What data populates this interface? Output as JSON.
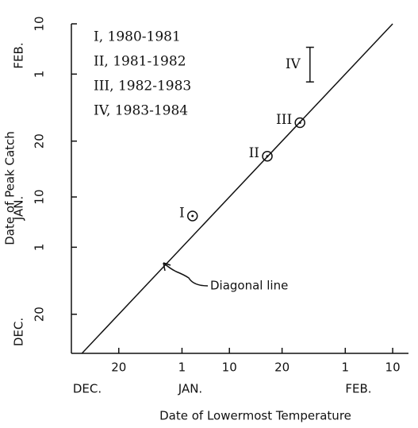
{
  "chart_data": {
    "type": "scatter",
    "x_label": "Date of Lowermost Temperature",
    "y_label": "Date of Peak Catch",
    "x_months": [
      "DEC.",
      "JAN.",
      "FEB."
    ],
    "y_months": [
      "DEC.",
      "JAN.",
      "FEB."
    ],
    "xlim": [
      11,
      75
    ],
    "ylim": [
      13,
      72
    ],
    "xticks": [
      20,
      {
        "value": 32,
        "label": "1"
      },
      {
        "value": 41,
        "label": "10"
      },
      {
        "value": 51,
        "label": "20"
      },
      {
        "value": 63,
        "label": "1"
      },
      {
        "value": 72,
        "label": "10"
      }
    ],
    "yticks": [
      20,
      {
        "value": 32,
        "label": "1"
      },
      {
        "value": 41,
        "label": "10"
      },
      {
        "value": 51,
        "label": "20"
      },
      {
        "value": 63,
        "label": "1"
      },
      {
        "value": 72,
        "label": "10"
      }
    ],
    "points": {
      "labels": [
        "I",
        "II",
        "III"
      ],
      "x": [
        34,
        48.2,
        54.4
      ],
      "values": [
        37.6,
        48.3,
        54.3
      ]
    },
    "range": {
      "label": "IV",
      "x": 56.3,
      "low": 61.6,
      "high": 67.8
    },
    "legend": [
      "I, 1980-1981",
      "II, 1981-1982",
      "III, 1982-1983",
      "IV, 1983-1984"
    ],
    "diagonal_label": "Diagonal line",
    "color": "#111111"
  }
}
